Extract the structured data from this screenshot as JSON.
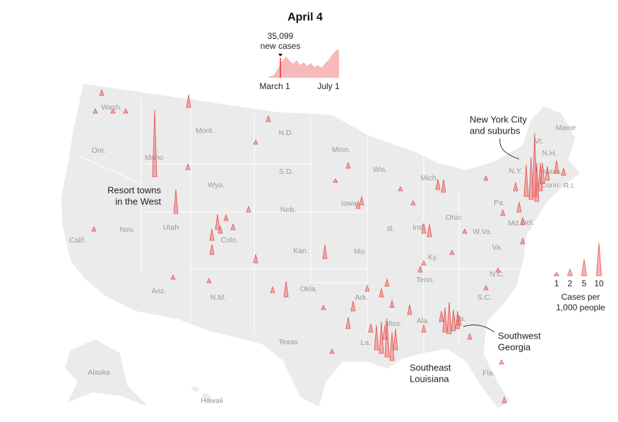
{
  "title": "April 4",
  "sparkline": {
    "value_label": "35,099",
    "value_caption": "new cases",
    "start_label": "March 1",
    "end_label": "July 1"
  },
  "annotations": [
    {
      "lines": [
        "New York City",
        "and suburbs"
      ]
    },
    {
      "lines": [
        "Resort towns",
        "in the West"
      ]
    },
    {
      "lines": [
        "Southeast",
        "Louisiana"
      ]
    },
    {
      "lines": [
        "Southwest",
        "Georgia"
      ]
    }
  ],
  "state_labels": [
    "Wash.",
    "Mont.",
    "N.D.",
    "Minn.",
    "Maine",
    "Ore.",
    "Idaho",
    "Wyo.",
    "S.D.",
    "Wis.",
    "Mich.",
    "Vt.",
    "N.H.",
    "N.Y.",
    "Mass.",
    "Conn.",
    "R.I.",
    "Nev.",
    "Utah",
    "Colo.",
    "Neb.",
    "Iowa",
    "Ill.",
    "Ind.",
    "Ohio",
    "Pa.",
    "Md.",
    "Del.",
    "Calif.",
    "Kan.",
    "Mo.",
    "Ky.",
    "W.Va.",
    "Va.",
    "Ariz.",
    "N.M.",
    "Okla.",
    "Ark.",
    "Tenn.",
    "N.C.",
    "S.C.",
    "Miss.",
    "Ala.",
    "Ga.",
    "Texas",
    "La.",
    "Fla.",
    "Alaska",
    "Hawaii"
  ],
  "legend": {
    "values": [
      1,
      2,
      5,
      10
    ],
    "caption": [
      "Cases per",
      "1,000 people"
    ]
  }
}
